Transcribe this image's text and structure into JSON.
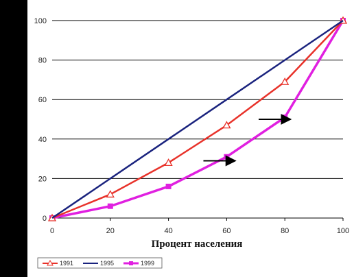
{
  "chart_data": {
    "type": "line",
    "xlabel": "Процент населения",
    "ylabel": "",
    "x": [
      0,
      20,
      40,
      60,
      80,
      100
    ],
    "xlim": [
      0,
      100
    ],
    "ylim": [
      0,
      100
    ],
    "xticks": [
      "0",
      "20",
      "40",
      "60",
      "80",
      "100"
    ],
    "yticks": [
      "0",
      "20",
      "40",
      "60",
      "80",
      "100"
    ],
    "grid": "horizontal",
    "legend_position": "bottom-left",
    "series": [
      {
        "name": "1991",
        "values": [
          0,
          12,
          28,
          47,
          69,
          100
        ],
        "color": "#e8322a",
        "marker": "triangle-open"
      },
      {
        "name": "1995",
        "values": [
          0,
          20,
          40,
          60,
          80,
          100
        ],
        "color": "#1a237e",
        "marker": "none"
      },
      {
        "name": "1999",
        "values": [
          0,
          6,
          16,
          31,
          51,
          100
        ],
        "color": "#e020e0",
        "marker": "square"
      }
    ],
    "annotations": [
      {
        "type": "arrow",
        "from": [
          52,
          29
        ],
        "to": [
          63,
          29
        ]
      },
      {
        "type": "arrow",
        "from": [
          71,
          50
        ],
        "to": [
          82,
          50
        ]
      }
    ]
  }
}
